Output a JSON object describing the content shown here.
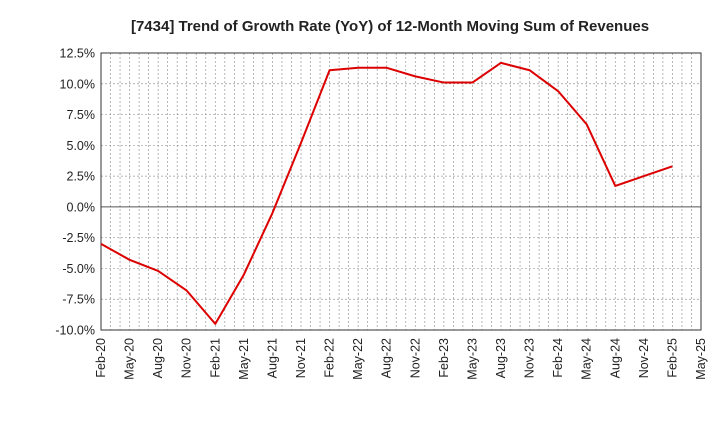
{
  "chart_data": {
    "type": "line",
    "title": "[7434]  Trend of Growth Rate (YoY) of 12-Month Moving Sum of Revenues",
    "xlabel": "",
    "ylabel": "",
    "ylim": [
      -10.0,
      12.5
    ],
    "y_ticks": [
      "12.5%",
      "10.0%",
      "7.5%",
      "5.0%",
      "2.5%",
      "0.0%",
      "-2.5%",
      "-5.0%",
      "-7.5%",
      "-10.0%"
    ],
    "y_tick_values": [
      12.5,
      10.0,
      7.5,
      5.0,
      2.5,
      0.0,
      -2.5,
      -5.0,
      -7.5,
      -10.0
    ],
    "x_ticks": [
      "Feb-20",
      "May-20",
      "Aug-20",
      "Nov-20",
      "Feb-21",
      "May-21",
      "Aug-21",
      "Nov-21",
      "Feb-22",
      "May-22",
      "Aug-22",
      "Nov-22",
      "Feb-23",
      "May-23",
      "Aug-23",
      "Nov-23",
      "Feb-24",
      "May-24",
      "Aug-24",
      "Nov-24",
      "Feb-25",
      "May-25"
    ],
    "grid": true,
    "line_color": "#dd0000",
    "series": [
      {
        "x": [
          "Feb-20",
          "May-20",
          "Aug-20",
          "Nov-20",
          "Feb-21",
          "May-21",
          "Aug-21",
          "Nov-21",
          "Feb-22",
          "May-22",
          "Aug-22",
          "Nov-22",
          "Feb-23",
          "May-23",
          "Aug-23",
          "Nov-23",
          "Feb-24",
          "May-24",
          "Aug-24",
          "Nov-24",
          "Feb-25"
        ],
        "values": [
          -3.0,
          -4.3,
          -5.2,
          -6.8,
          -9.5,
          -5.5,
          -0.5,
          5.2,
          11.1,
          11.3,
          11.3,
          10.6,
          10.1,
          10.1,
          11.7,
          11.1,
          9.4,
          6.7,
          1.7,
          2.5,
          3.3
        ]
      }
    ]
  }
}
